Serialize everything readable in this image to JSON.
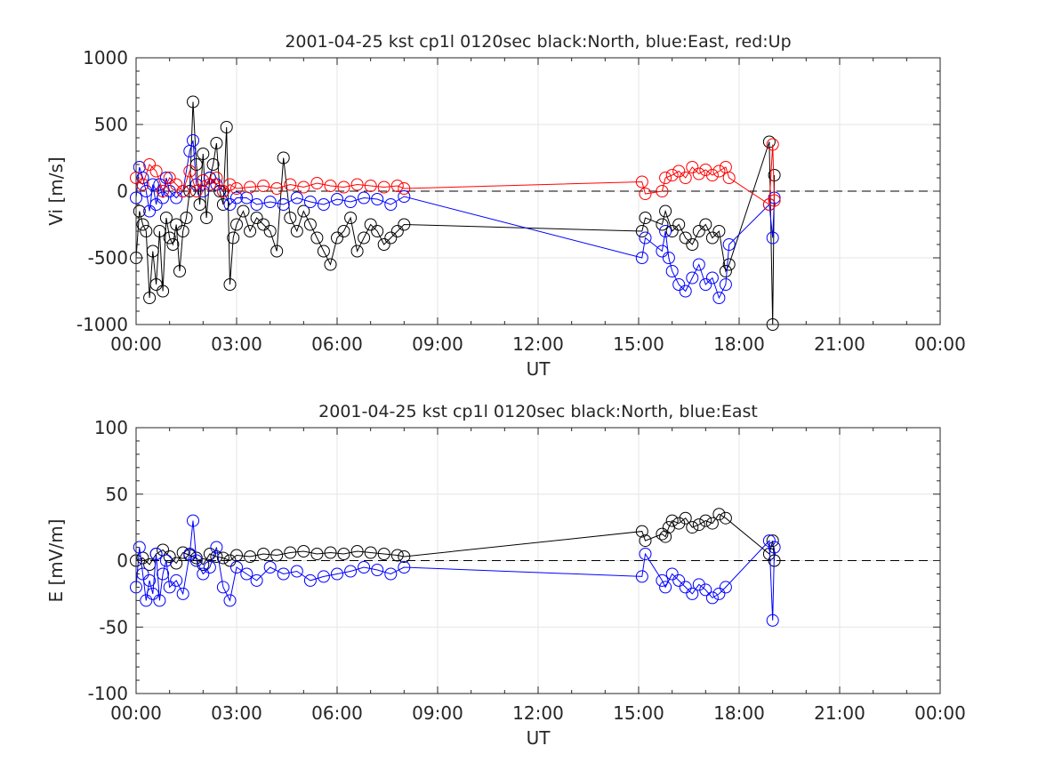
{
  "chart_data": [
    {
      "type": "line",
      "title": "2001-04-25 kst cp1l 0120sec black:North, blue:East, red:Up",
      "xlabel": "UT",
      "ylabel": "Vi [m/s]",
      "xlim": [
        0,
        24
      ],
      "ylim": [
        -1000,
        1000
      ],
      "xticks": [
        "00:00",
        "03:00",
        "06:00",
        "09:00",
        "12:00",
        "15:00",
        "18:00",
        "21:00",
        "00:00"
      ],
      "yticks": [
        "-1000",
        "-500",
        "0",
        "500",
        "1000"
      ],
      "grid": true,
      "reference_line": 0,
      "colors": {
        "north": "#000000",
        "east": "#0000ff",
        "up": "#ff0000"
      },
      "series": [
        {
          "color": "#000000",
          "x": [
            0.0,
            0.1,
            0.2,
            0.3,
            0.4,
            0.5,
            0.6,
            0.7,
            0.8,
            0.9,
            1.0,
            1.1,
            1.2,
            1.3,
            1.4,
            1.5,
            1.6,
            1.7,
            1.8,
            1.9,
            2.0,
            2.1,
            2.2,
            2.3,
            2.4,
            2.5,
            2.6,
            2.7,
            2.8,
            2.9,
            3.0,
            3.2,
            3.4,
            3.6,
            3.8,
            4.0,
            4.2,
            4.4,
            4.6,
            4.8,
            5.0,
            5.2,
            5.4,
            5.6,
            5.8,
            6.0,
            6.2,
            6.4,
            6.6,
            6.8,
            7.0,
            7.2,
            7.4,
            7.6,
            7.8,
            8.0,
            15.1,
            15.2,
            15.7,
            15.8,
            16.0,
            16.2,
            16.4,
            16.6,
            16.8,
            17.0,
            17.2,
            17.4,
            17.6,
            17.7,
            18.9,
            19.0,
            19.05
          ],
          "y": [
            -500,
            -150,
            -250,
            -300,
            -800,
            -450,
            -700,
            -300,
            -750,
            -200,
            -350,
            -400,
            -250,
            -600,
            -300,
            -200,
            0,
            670,
            200,
            -100,
            280,
            -200,
            100,
            200,
            360,
            0,
            -100,
            480,
            -700,
            -350,
            -250,
            -150,
            -300,
            -200,
            -250,
            -300,
            -450,
            250,
            -200,
            -300,
            -150,
            -250,
            -350,
            -450,
            -550,
            -350,
            -300,
            -200,
            -450,
            -350,
            -250,
            -300,
            -400,
            -350,
            -300,
            -250,
            -300,
            -200,
            -250,
            -150,
            -300,
            -250,
            -350,
            -400,
            -300,
            -250,
            -350,
            -300,
            -600,
            -550,
            370,
            -1000,
            120
          ]
        },
        {
          "color": "#0000ff",
          "x": [
            0.0,
            0.1,
            0.2,
            0.3,
            0.4,
            0.5,
            0.6,
            0.7,
            0.8,
            0.9,
            1.0,
            1.2,
            1.4,
            1.6,
            1.7,
            1.8,
            2.0,
            2.2,
            2.4,
            2.6,
            2.8,
            3.0,
            3.3,
            3.6,
            4.0,
            4.4,
            4.8,
            5.2,
            5.6,
            6.0,
            6.4,
            6.8,
            7.2,
            7.6,
            8.0,
            15.1,
            15.2,
            15.7,
            15.8,
            15.9,
            16.0,
            16.2,
            16.4,
            16.6,
            16.8,
            17.0,
            17.2,
            17.4,
            17.6,
            17.7,
            18.9,
            19.0,
            19.05
          ],
          "y": [
            -50,
            180,
            100,
            0,
            -150,
            50,
            -100,
            50,
            -50,
            100,
            0,
            -50,
            0,
            300,
            380,
            50,
            0,
            100,
            50,
            0,
            -100,
            -50,
            -50,
            -100,
            -80,
            -100,
            -50,
            -80,
            -100,
            -60,
            -80,
            -50,
            -60,
            -100,
            -40,
            -500,
            -350,
            -450,
            -300,
            -500,
            -600,
            -700,
            -750,
            -650,
            -550,
            -700,
            -650,
            -800,
            -700,
            -400,
            -100,
            -350,
            -50
          ]
        },
        {
          "color": "#ff0000",
          "x": [
            0.0,
            0.2,
            0.4,
            0.6,
            0.8,
            1.0,
            1.2,
            1.4,
            1.6,
            1.8,
            2.0,
            2.2,
            2.4,
            2.6,
            2.8,
            3.0,
            3.4,
            3.8,
            4.2,
            4.6,
            5.0,
            5.4,
            5.8,
            6.2,
            6.6,
            7.0,
            7.4,
            7.8,
            8.0,
            15.1,
            15.2,
            15.7,
            15.8,
            16.0,
            16.2,
            16.4,
            16.6,
            16.8,
            17.0,
            17.2,
            17.4,
            17.6,
            17.7,
            18.9,
            19.0,
            19.05
          ],
          "y": [
            100,
            50,
            200,
            150,
            0,
            100,
            50,
            0,
            150,
            0,
            80,
            50,
            100,
            0,
            50,
            20,
            30,
            40,
            20,
            50,
            30,
            60,
            40,
            30,
            50,
            40,
            30,
            40,
            20,
            70,
            -20,
            0,
            100,
            120,
            150,
            100,
            180,
            130,
            160,
            120,
            150,
            180,
            100,
            -100,
            350,
            -70
          ]
        }
      ]
    },
    {
      "type": "line",
      "title": "2001-04-25 kst cp1l 0120sec black:North, blue:East",
      "xlabel": "UT",
      "ylabel": "E [mV/m]",
      "xlim": [
        0,
        24
      ],
      "ylim": [
        -100,
        100
      ],
      "xticks": [
        "00:00",
        "03:00",
        "06:00",
        "09:00",
        "12:00",
        "15:00",
        "18:00",
        "21:00",
        "00:00"
      ],
      "yticks": [
        "-100",
        "-50",
        "0",
        "50",
        "100"
      ],
      "grid": true,
      "reference_line": 0,
      "colors": {
        "north": "#000000",
        "east": "#0000ff"
      },
      "series": [
        {
          "color": "#000000",
          "x": [
            0.0,
            0.2,
            0.4,
            0.6,
            0.8,
            1.0,
            1.2,
            1.4,
            1.6,
            1.8,
            2.0,
            2.2,
            2.4,
            2.6,
            2.8,
            3.0,
            3.4,
            3.8,
            4.2,
            4.6,
            5.0,
            5.4,
            5.8,
            6.2,
            6.6,
            7.0,
            7.4,
            7.8,
            8.0,
            15.1,
            15.2,
            15.7,
            15.8,
            15.9,
            16.0,
            16.2,
            16.4,
            16.6,
            16.8,
            17.0,
            17.2,
            17.4,
            17.6,
            18.9,
            19.0,
            19.05
          ],
          "y": [
            0,
            2,
            -3,
            5,
            8,
            3,
            -2,
            6,
            4,
            2,
            -3,
            5,
            3,
            2,
            0,
            4,
            3,
            5,
            4,
            6,
            7,
            5,
            6,
            5,
            7,
            6,
            5,
            4,
            3,
            22,
            15,
            20,
            18,
            25,
            30,
            28,
            32,
            25,
            27,
            30,
            28,
            35,
            32,
            5,
            15,
            0
          ]
        },
        {
          "color": "#0000ff",
          "x": [
            0.0,
            0.1,
            0.2,
            0.3,
            0.4,
            0.5,
            0.6,
            0.7,
            0.8,
            0.9,
            1.0,
            1.2,
            1.4,
            1.6,
            1.7,
            1.8,
            2.0,
            2.2,
            2.4,
            2.6,
            2.8,
            3.0,
            3.3,
            3.6,
            4.0,
            4.4,
            4.8,
            5.2,
            5.6,
            6.0,
            6.4,
            6.8,
            7.2,
            7.6,
            8.0,
            15.1,
            15.2,
            15.7,
            15.8,
            16.0,
            16.2,
            16.4,
            16.6,
            16.8,
            17.0,
            17.2,
            17.4,
            17.6,
            18.9,
            19.0,
            19.05
          ],
          "y": [
            -20,
            10,
            -10,
            -30,
            -15,
            -25,
            5,
            -30,
            -10,
            0,
            -20,
            -15,
            -25,
            5,
            30,
            0,
            -10,
            -5,
            10,
            -20,
            -30,
            -5,
            -10,
            -15,
            -5,
            -10,
            -8,
            -15,
            -12,
            -10,
            -8,
            -5,
            -7,
            -10,
            -5,
            -12,
            5,
            -15,
            -20,
            -10,
            -15,
            -20,
            -25,
            -18,
            -22,
            -28,
            -25,
            -20,
            15,
            -45,
            10
          ]
        }
      ]
    }
  ]
}
